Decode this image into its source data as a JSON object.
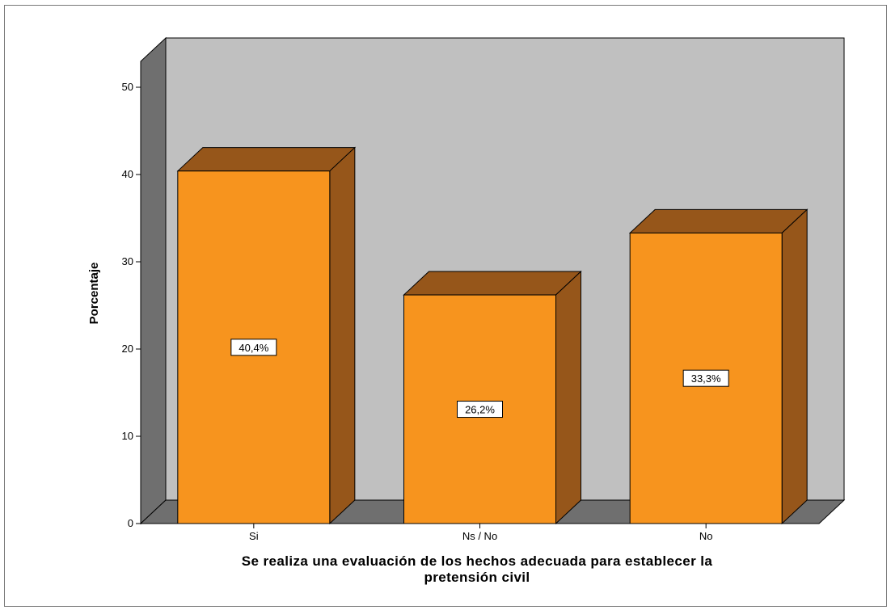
{
  "chart_data": {
    "type": "bar",
    "categories": [
      "Si",
      "Ns / No",
      "No"
    ],
    "values": [
      40.4,
      26.2,
      33.3
    ],
    "data_labels": [
      "40,4%",
      "26,2%",
      "33,3%"
    ],
    "title": "",
    "xlabel_lines": [
      "Se realiza una evaluación de los hechos adecuada para establecer la",
      "pretensión civil"
    ],
    "ylabel": "Porcentaje",
    "ylim": [
      0,
      55
    ],
    "yticks": [
      0,
      10,
      20,
      30,
      40,
      50
    ],
    "grid": false,
    "legend": "none",
    "style": "3d",
    "colors": {
      "bar_front": "#F7941E",
      "bar_top": "#96561A",
      "bar_side": "#96561A",
      "back_wall": "#C0C0C0",
      "side_wall": "#6F6F6F",
      "floor": "#6F6F6F",
      "frame": "#777777"
    }
  }
}
